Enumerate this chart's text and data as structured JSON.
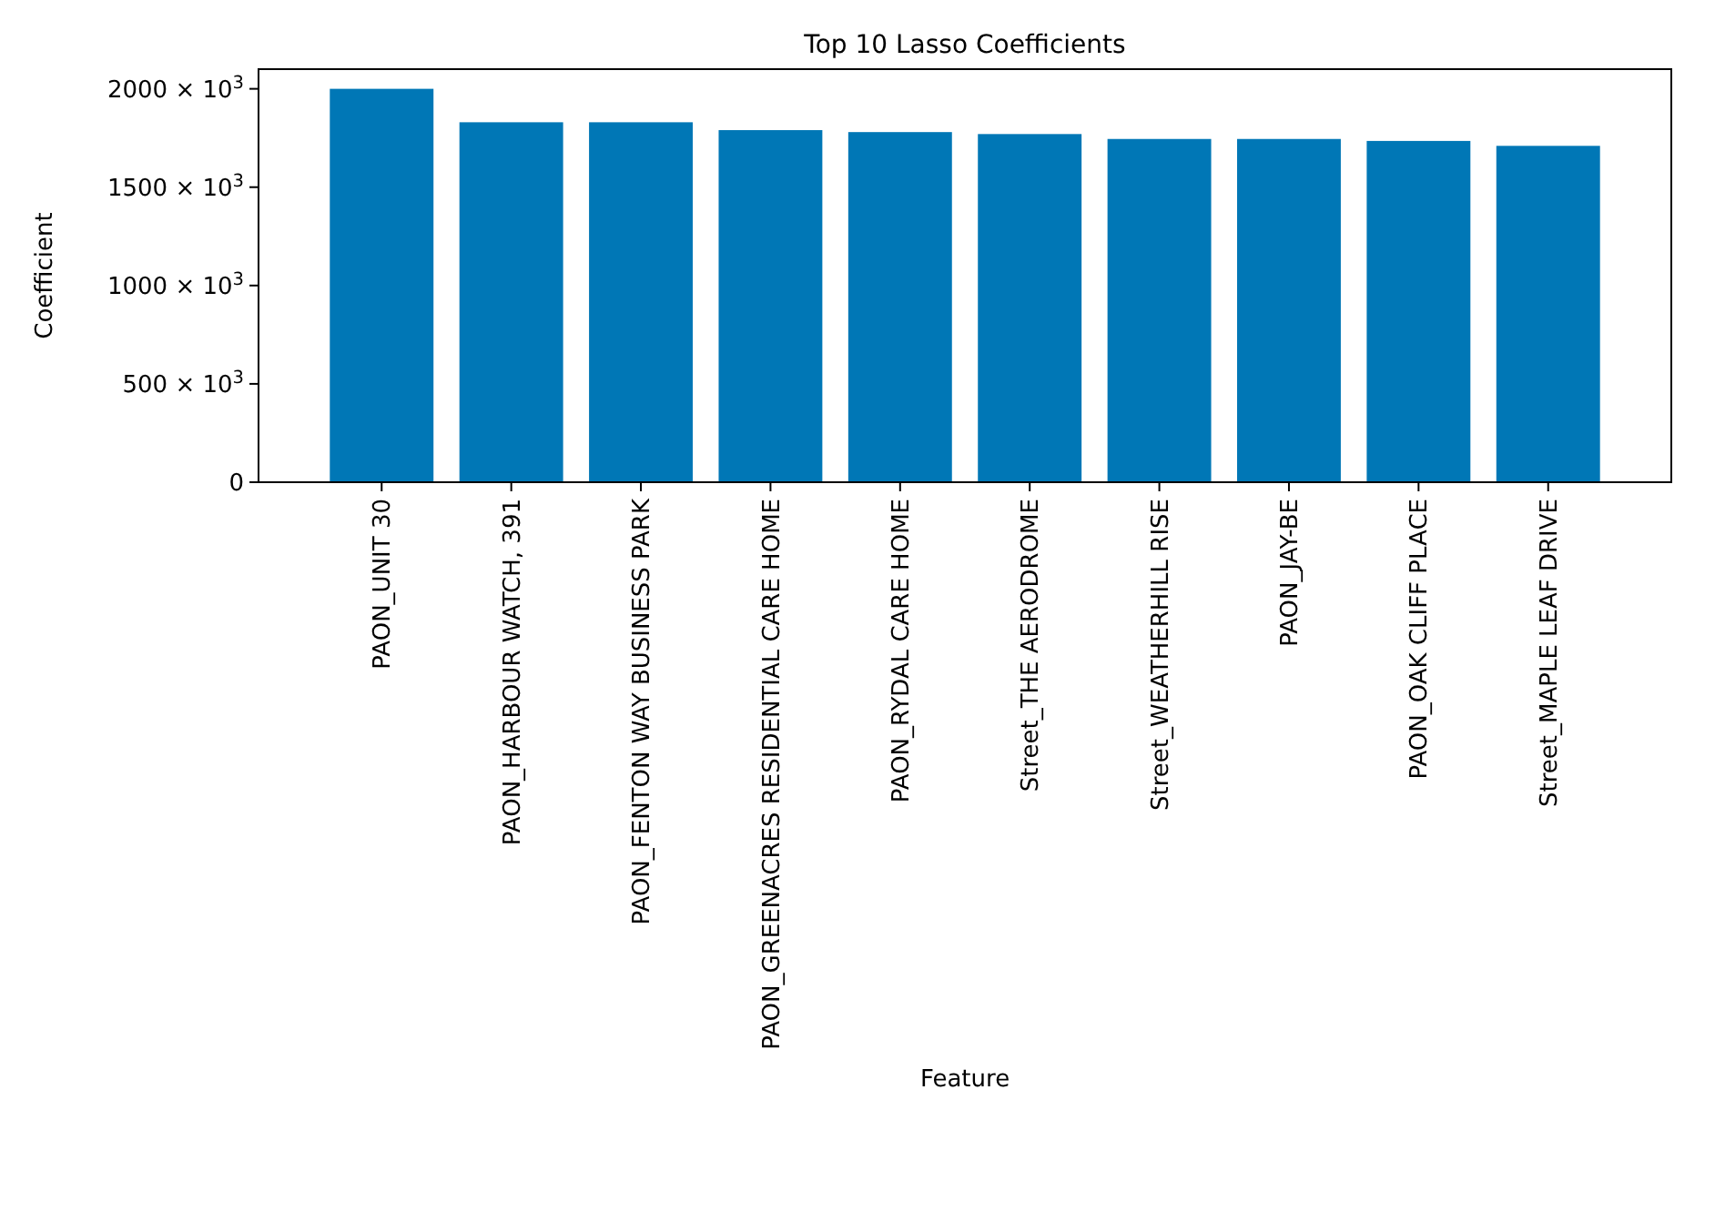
{
  "chart_data": {
    "type": "bar",
    "title": "Top 10 Lasso Coefficients",
    "xlabel": "Feature",
    "ylabel": "Coefficient",
    "categories": [
      "PAON_UNIT 30",
      "PAON_HARBOUR WATCH, 391",
      "PAON_FENTON WAY BUSINESS PARK",
      "PAON_GREENACRES RESIDENTIAL CARE HOME",
      "PAON_RYDAL CARE HOME",
      "Street_THE AERODROME",
      "Street_WEATHERHILL RISE",
      "PAON_JAY-BE",
      "PAON_OAK CLIFF PLACE",
      "Street_MAPLE LEAF DRIVE"
    ],
    "values": [
      2000000,
      1830000,
      1830000,
      1790000,
      1780000,
      1770000,
      1745000,
      1745000,
      1735000,
      1710000
    ],
    "color": "#0077b6",
    "ylim": [
      0,
      2100000
    ],
    "yticks": [
      0,
      {
        "value": 500000,
        "label": "500 × 10$^{3}$"
      },
      {
        "value": 1000000,
        "label": "1000 × 10$^{3}$"
      },
      {
        "value": 1500000,
        "label": "1500 × 10$^{3}$"
      },
      {
        "value": 2000000,
        "label": "2000 × 10$^{3}$"
      }
    ],
    "grid": false
  }
}
